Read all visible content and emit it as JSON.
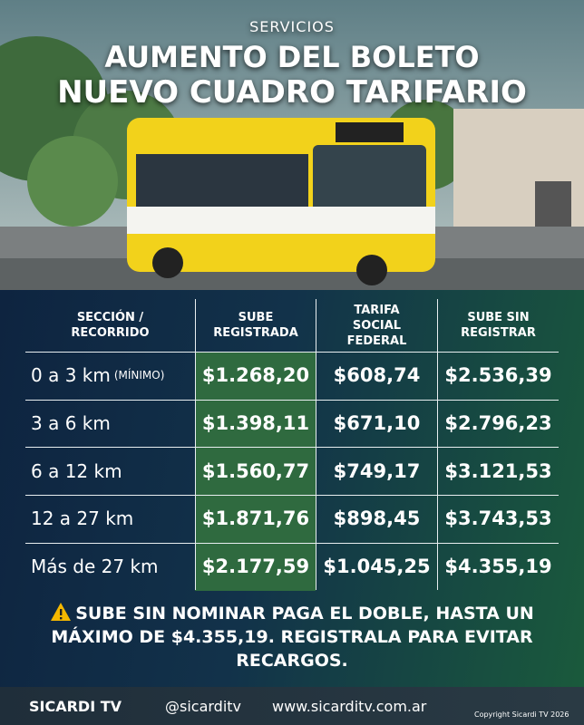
{
  "header": {
    "kicker": "SERVICIOS",
    "title_line1": "AUMENTO DEL BOLETO",
    "title_line2": "NUEVO CUADRO TARIFARIO"
  },
  "table": {
    "header": [
      "SECCIÓN / RECORRIDO",
      "SUBE REGISTRADA",
      "TARIFA SOCIAL FEDERAL",
      "SUBE SIN REGISTRAR"
    ],
    "rows": [
      {
        "section": "0 a 3 km",
        "note": "(MÍNIMO)",
        "values": [
          "$1.268,20",
          "$608,74",
          "$2.536,39"
        ]
      },
      {
        "section": "3 a 6 km",
        "values": [
          "$1.398,11",
          "$671,10",
          "$2.796,23"
        ]
      },
      {
        "section": "6 a 12 km",
        "values": [
          "$1.560,77",
          "$749,17",
          "$3.121,53"
        ]
      },
      {
        "section": "12 a 27 km",
        "values": [
          "$1.871,76",
          "$898,45",
          "$3.743,53"
        ]
      },
      {
        "section": "Más de 27 km",
        "values": [
          "$2.177,59",
          "$1.045,25",
          "$4.355,19"
        ]
      }
    ]
  },
  "warning": "SUBE SIN NOMINAR PAGA EL DOBLE, HASTA UN MÁXIMO DE $4.355,19. REGISTRALA PARA EVITAR RECARGOS.",
  "footer": {
    "brand": "SICARDI TV",
    "handle": "@sicarditv",
    "website": "www.sicarditv.com.ar",
    "copyright": "Copyright Sicardi TV 2026"
  }
}
